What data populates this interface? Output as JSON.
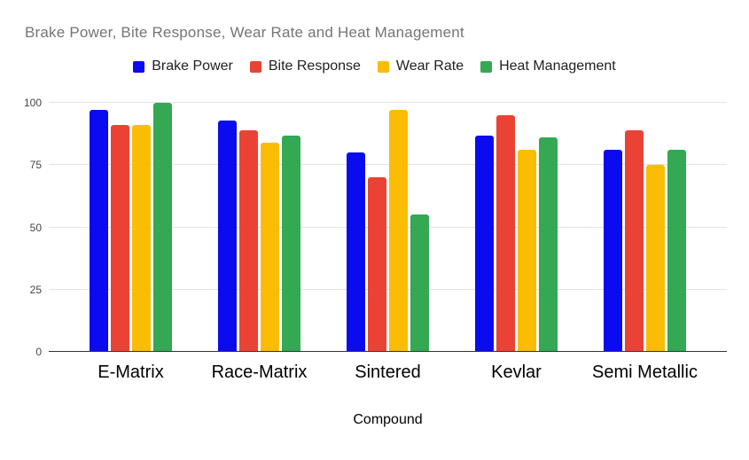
{
  "chart_data": {
    "type": "bar",
    "title": "Brake Power, Bite Response, Wear Rate and Heat Management",
    "xlabel": "Compound",
    "ylabel": "",
    "categories": [
      "E-Matrix",
      "Race-Matrix",
      "Sintered",
      "Kevlar",
      "Semi Metallic"
    ],
    "series": [
      {
        "name": "Brake Power",
        "color": "#0b0bef",
        "values": [
          97,
          93,
          80,
          87,
          81
        ]
      },
      {
        "name": "Bite Response",
        "color": "#ea4335",
        "values": [
          91,
          89,
          70,
          95,
          89
        ]
      },
      {
        "name": "Wear Rate",
        "color": "#fbbc04",
        "values": [
          91,
          84,
          97,
          81,
          75
        ]
      },
      {
        "name": "Heat Management",
        "color": "#34a853",
        "values": [
          100,
          87,
          55,
          86,
          81
        ]
      }
    ],
    "ylim": [
      0,
      100
    ],
    "yticks": [
      0,
      25,
      50,
      75,
      100
    ],
    "grid": true,
    "legend_position": "top",
    "title_color": "#757575",
    "gridline_color": "#e3e3e3",
    "axis_line_color": "#333333"
  }
}
